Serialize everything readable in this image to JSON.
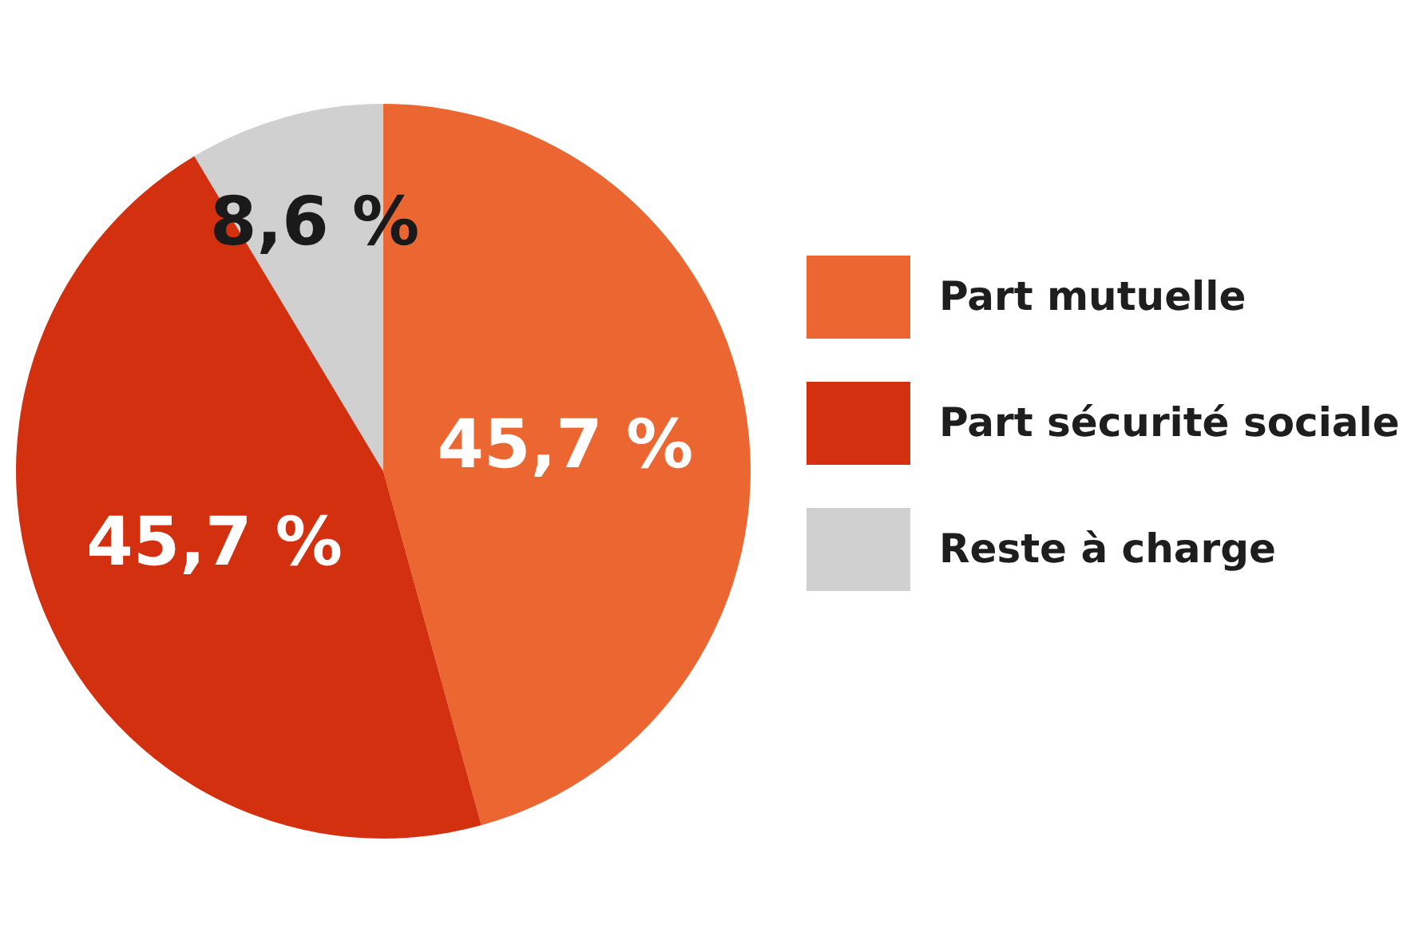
{
  "chart_data": {
    "type": "pie",
    "categories": [
      "Part mutuelle",
      "Part sécurité sociale",
      "Reste à charge"
    ],
    "values": [
      45.7,
      45.7,
      8.6
    ],
    "colors": [
      "#ec6631",
      "#d33010",
      "#d0d0d0"
    ],
    "value_labels": [
      "45,7 %",
      "45,7 %",
      "8,6 %"
    ],
    "legend": "right"
  }
}
